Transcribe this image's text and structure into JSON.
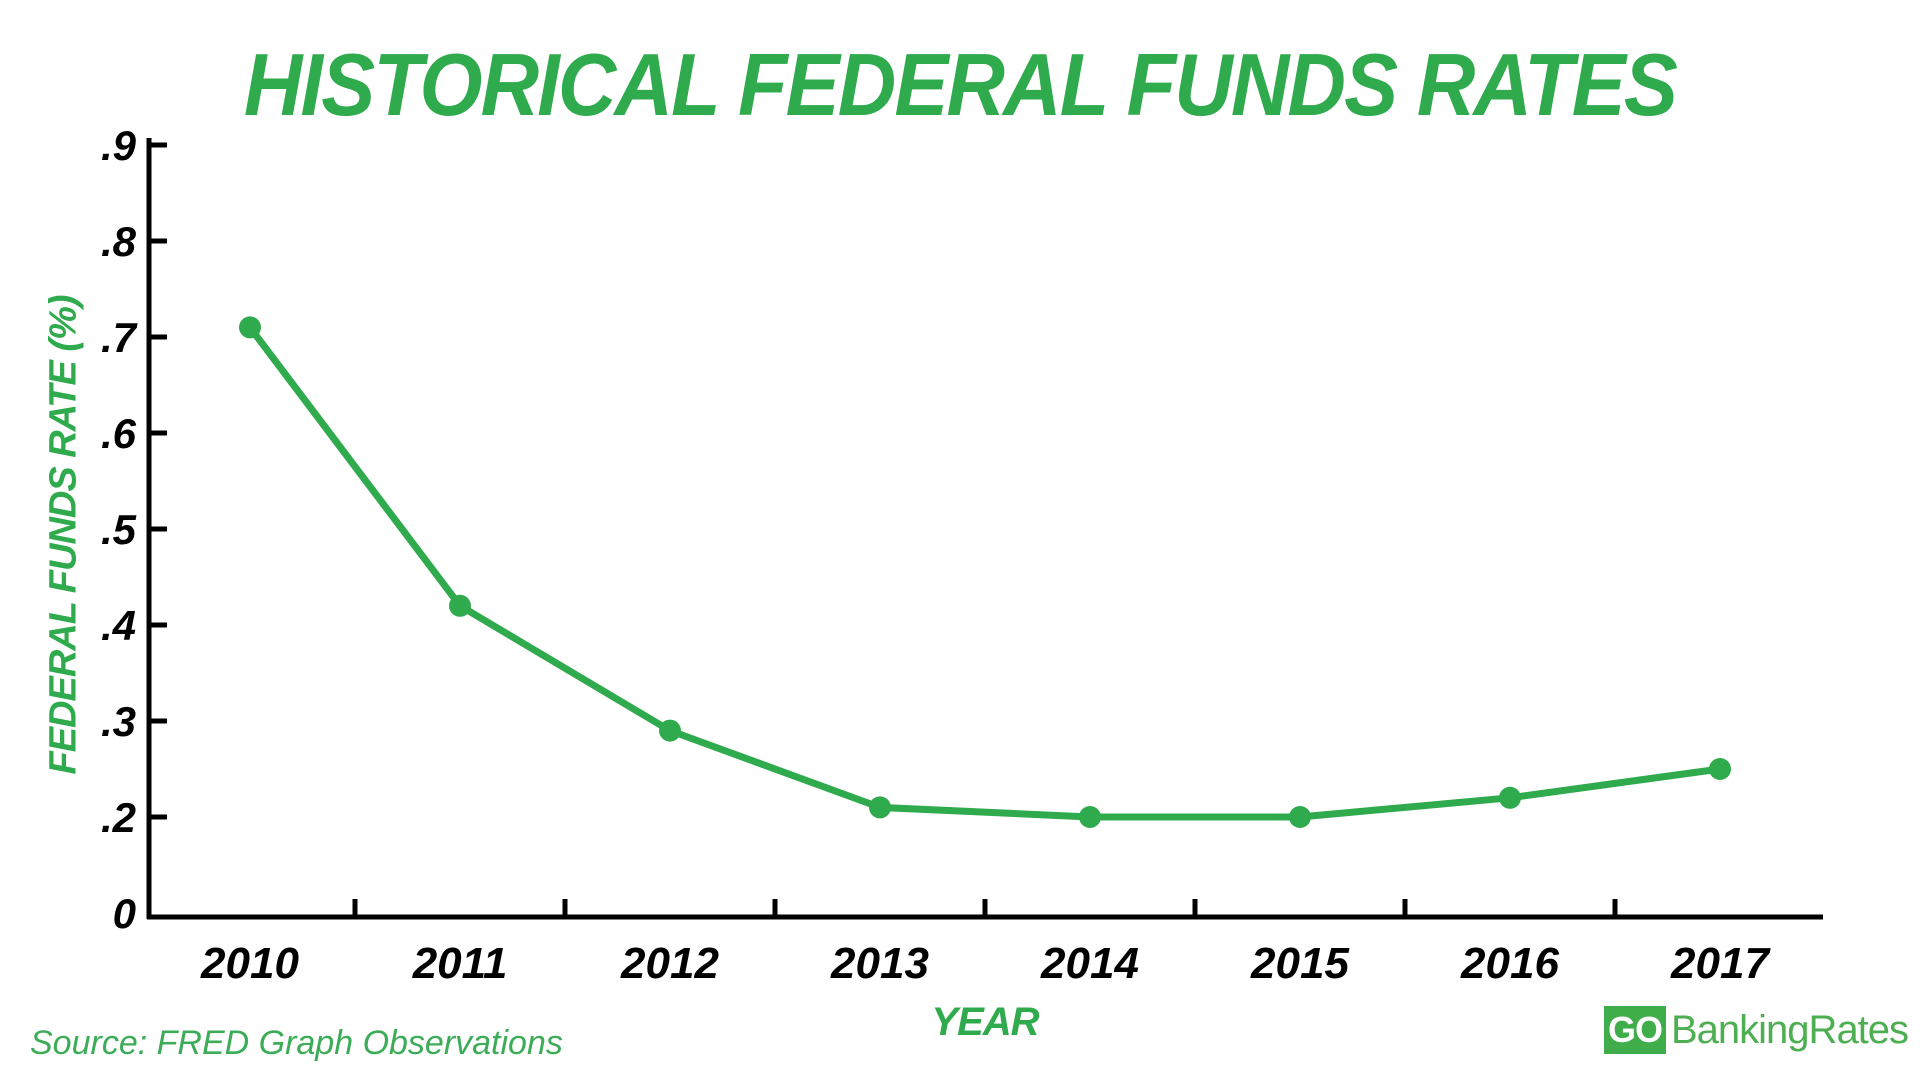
{
  "title": "HISTORICAL FEDERAL FUNDS RATES",
  "source": "Source: FRED Graph Observations",
  "logo": {
    "go": "GO",
    "rest": "BankingRates"
  },
  "colors": {
    "accent": "#2FAA4D",
    "accent_light": "#3CAC58",
    "logo_green": "#3FAE4A",
    "logo_text": "#4DAF51",
    "axis_black": "#000000"
  },
  "chart_data": {
    "type": "line",
    "title": "HISTORICAL FEDERAL FUNDS RATES",
    "xlabel": "YEAR",
    "ylabel": "FEDERAL FUNDS RATE (%)",
    "categories": [
      "2010",
      "2011",
      "2012",
      "2013",
      "2014",
      "2015",
      "2016",
      "2017"
    ],
    "series": [
      {
        "name": "Federal Funds Rate (%)",
        "values": [
          0.71,
          0.42,
          0.29,
          0.21,
          0.2,
          0.2,
          0.22,
          0.25
        ]
      }
    ],
    "y_tick_labels": [
      ".9",
      ".8",
      ".7",
      ".6",
      ".5",
      ".4",
      ".3",
      ".2",
      "0"
    ],
    "ylim": [
      0,
      0.9
    ],
    "grid": false,
    "legend": "none",
    "marker": "circle",
    "line_color": "#2FAA4D"
  }
}
